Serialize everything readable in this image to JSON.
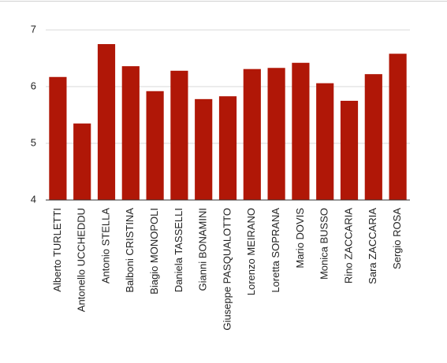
{
  "chart_data": {
    "type": "bar",
    "categories": [
      "Alberto TURLETTI",
      "Antonello UCCHEDDU",
      "Antonio STELLA",
      "Balboni CRISTINA",
      "Biagio MONOPOLI",
      "Daniela TASSELLI",
      "Gianni BONAMINI",
      "Giuseppe PASQUALOTTO",
      "Lorenzo MEIRANO",
      "Loretta SOPRANA",
      "Mario DOVIS",
      "Monica BUSSO",
      "Rino ZACCARIA",
      "Sara ZACCARIA",
      "Sergio ROSA"
    ],
    "values": [
      6.17,
      5.35,
      6.75,
      6.36,
      5.92,
      6.28,
      5.78,
      5.83,
      6.31,
      6.33,
      6.42,
      6.06,
      5.75,
      6.22,
      6.58
    ],
    "color": "#b01707",
    "ylim": [
      4,
      7
    ],
    "yticks": [
      4,
      5,
      6,
      7
    ],
    "grid": true
  }
}
